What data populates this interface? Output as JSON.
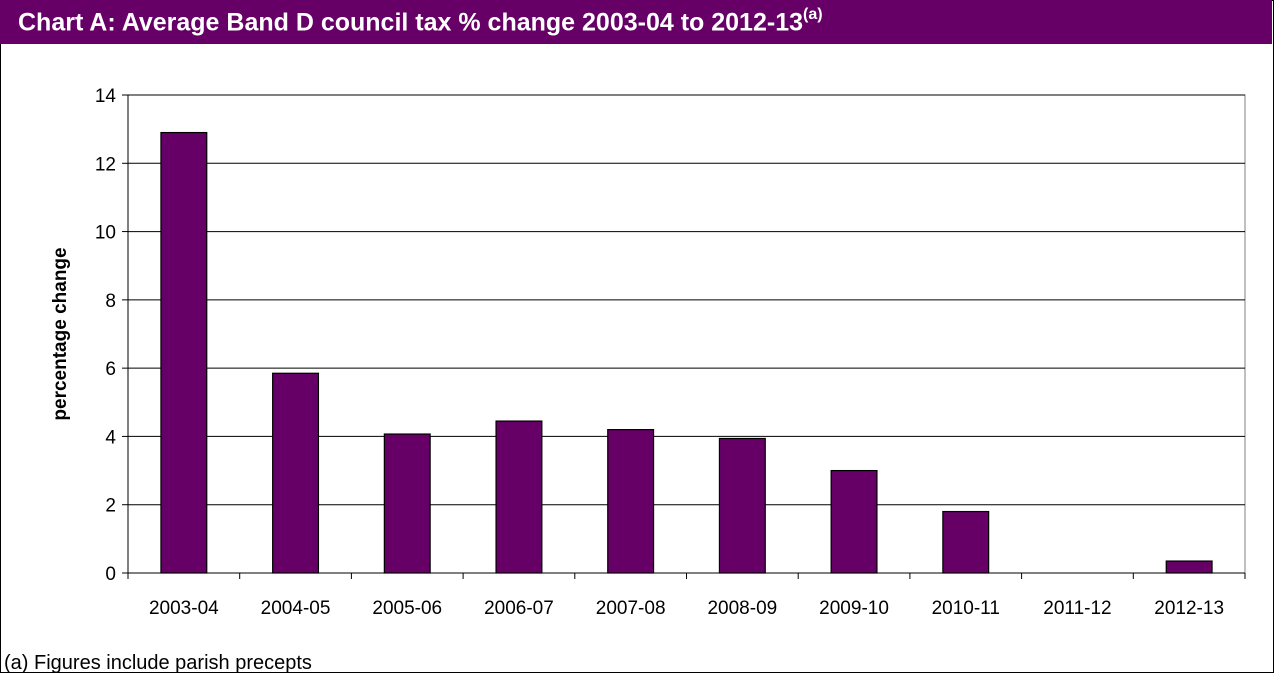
{
  "title": {
    "main": "Chart A: Average Band D council tax % change 2003-04 to 2012-13",
    "superscript": "(a)"
  },
  "footnote": "(a) Figures include parish precepts",
  "colors": {
    "title_bg": "#660066",
    "bar_fill": "#660066",
    "title_text": "#ffffff"
  },
  "chart_data": {
    "type": "bar",
    "categories": [
      "2003-04",
      "2004-05",
      "2005-06",
      "2006-07",
      "2007-08",
      "2008-09",
      "2009-10",
      "2010-11",
      "2011-12",
      "2012-13"
    ],
    "values": [
      12.9,
      5.85,
      4.07,
      4.45,
      4.2,
      3.94,
      3.0,
      1.8,
      0,
      0.35
    ],
    "title": "Chart A: Average Band D council tax % change 2003-04 to 2012-13",
    "xlabel": "",
    "ylabel": "percentage change",
    "ylim": [
      0,
      14
    ],
    "yticks": [
      0,
      2,
      4,
      6,
      8,
      10,
      12,
      14
    ],
    "grid": true,
    "legend": "none"
  }
}
